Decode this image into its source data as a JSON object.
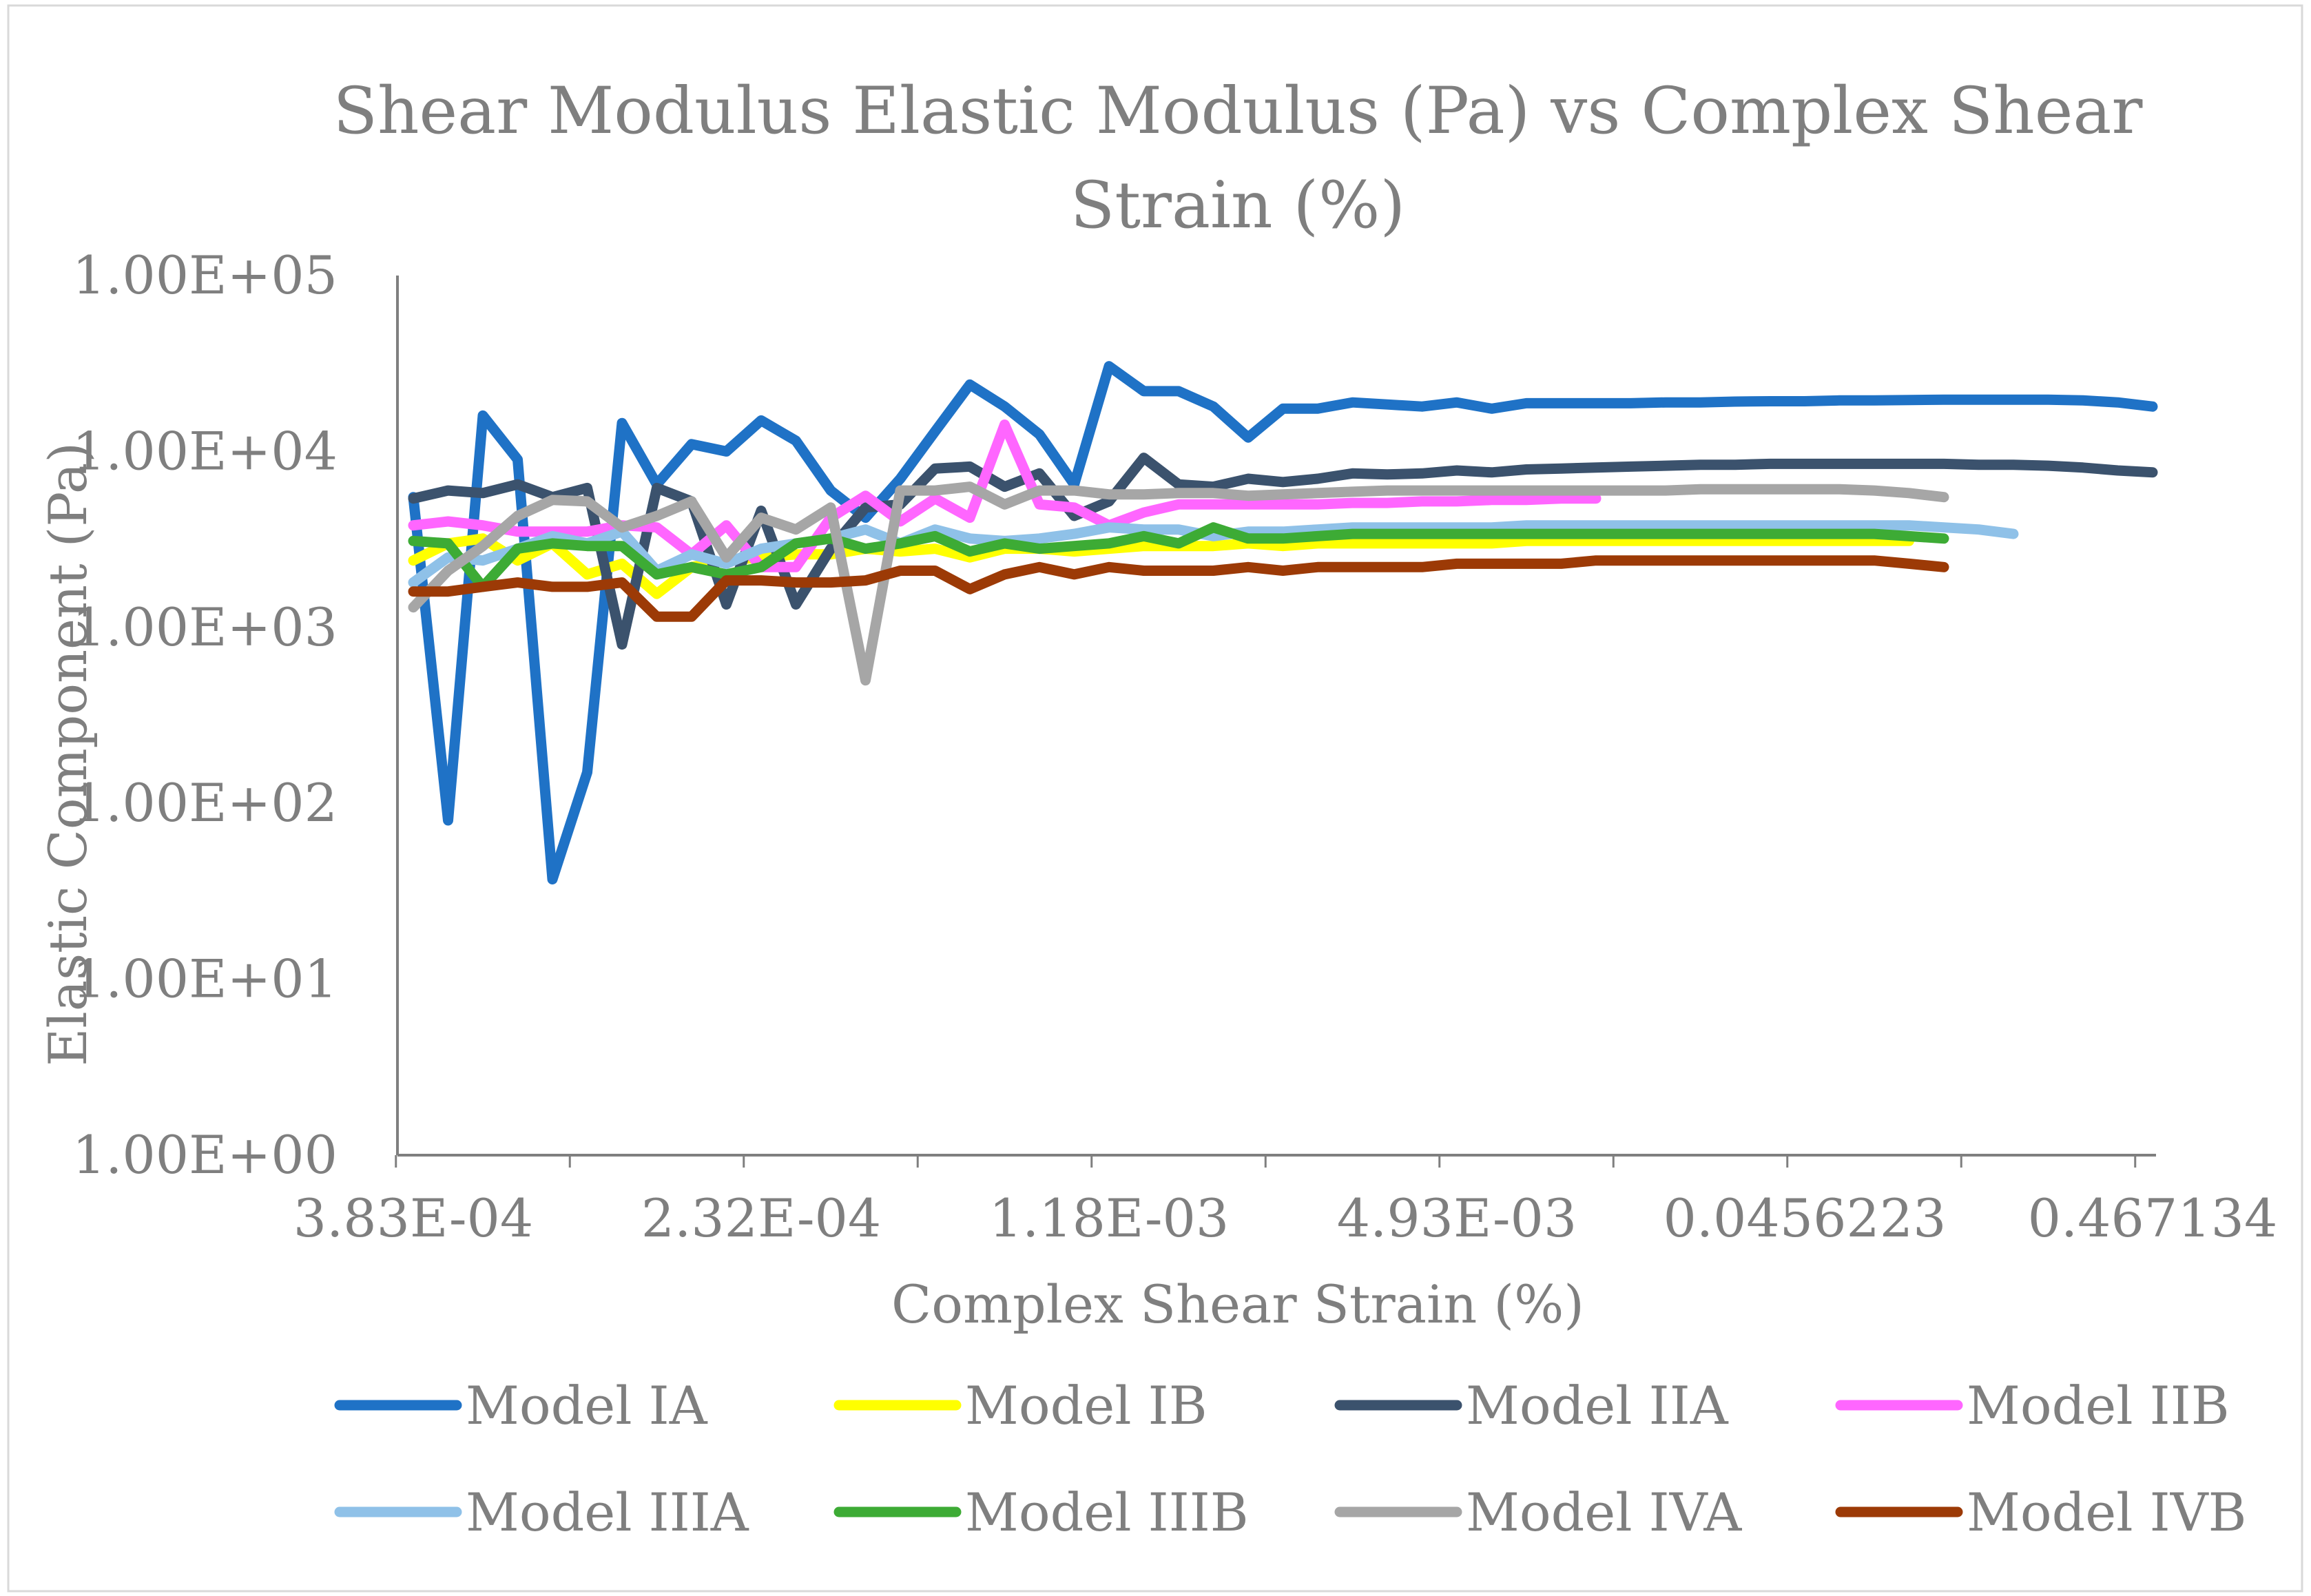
{
  "chart_data": {
    "type": "line",
    "title": "Shear Modulus Elastic Modulus (Pa) vs Complex Shear Strain (%)",
    "title_lines": [
      "Shear Modulus Elastic Modulus (Pa) vs Complex Shear",
      "Strain (%)"
    ],
    "xlabel": "Complex Shear Strain (%)",
    "ylabel": "Elastic Component (Pa)",
    "y_scale": "log",
    "ylim": [
      1,
      100000
    ],
    "y_ticks": [
      {
        "value": 1,
        "label": "1.00E+00"
      },
      {
        "value": 10,
        "label": "1.00E+01"
      },
      {
        "value": 100,
        "label": "1.00E+02"
      },
      {
        "value": 1000,
        "label": "1.00E+03"
      },
      {
        "value": 10000,
        "label": "1.00E+04"
      },
      {
        "value": 100000,
        "label": "1.00E+05"
      }
    ],
    "x_axis": {
      "type": "category",
      "point_count": 51,
      "tick_interval": 5,
      "label_interval": 10,
      "tick_labels": [
        "3.83E-04",
        "2.32E-04",
        "1.18E-03",
        "4.93E-03",
        "0.0456223",
        "0.467134"
      ]
    },
    "legend_position": "bottom",
    "series": [
      {
        "name": "Model IA",
        "color": "#1f72c6",
        "values": [
          5500,
          80,
          16000,
          9000,
          37,
          150,
          14500,
          6500,
          11000,
          10000,
          15000,
          11500,
          6000,
          4200,
          7000,
          13000,
          24000,
          18000,
          12500,
          6500,
          30500,
          22000,
          22000,
          18000,
          12000,
          17500,
          17500,
          19000,
          18500,
          18000,
          19000,
          17500,
          18800,
          18800,
          18800,
          18800,
          19000,
          19000,
          19200,
          19300,
          19300,
          19500,
          19500,
          19600,
          19700,
          19700,
          19700,
          19700,
          19500,
          19000,
          18000
        ]
      },
      {
        "name": "Model IB",
        "color": "#ffff00",
        "values": [
          2400,
          3000,
          3200,
          2400,
          3000,
          2000,
          2300,
          1550,
          2200,
          2400,
          2500,
          2600,
          2600,
          2800,
          2700,
          2800,
          2500,
          2800,
          2800,
          2700,
          2800,
          2900,
          2900,
          2900,
          3000,
          2900,
          3000,
          3000,
          3000,
          3000,
          3000,
          3000,
          3100,
          3100,
          3100,
          3100,
          3100,
          3100,
          3100,
          3100,
          3100,
          3100,
          3100,
          3100
        ]
      },
      {
        "name": "Model IIA",
        "color": "#3b526d",
        "values": [
          5400,
          6000,
          5800,
          6500,
          5500,
          6200,
          800,
          6200,
          5200,
          1350,
          4600,
          1350,
          2800,
          4800,
          5000,
          8000,
          8200,
          6300,
          7500,
          4300,
          5200,
          9200,
          6500,
          6300,
          7000,
          6700,
          7000,
          7500,
          7400,
          7500,
          7800,
          7600,
          7900,
          8000,
          8100,
          8200,
          8300,
          8400,
          8400,
          8500,
          8500,
          8500,
          8500,
          8500,
          8500,
          8400,
          8400,
          8300,
          8100,
          7800,
          7600
        ]
      },
      {
        "name": "Model IIB",
        "color": "#ff66ff",
        "values": [
          3800,
          4000,
          3800,
          3500,
          3500,
          3500,
          3800,
          3700,
          2600,
          3800,
          2200,
          2200,
          4200,
          5600,
          4000,
          5400,
          4200,
          14200,
          5000,
          4800,
          3800,
          4500,
          5000,
          5000,
          5000,
          5000,
          5000,
          5100,
          5100,
          5200,
          5200,
          5300,
          5300,
          5400,
          5400
        ]
      },
      {
        "name": "Model IIIA",
        "color": "#8fc1e8",
        "values": [
          1800,
          2500,
          2400,
          2800,
          3300,
          3000,
          3500,
          2100,
          2600,
          2300,
          2800,
          3000,
          3200,
          3600,
          3000,
          3600,
          3200,
          3100,
          3200,
          3400,
          3700,
          3600,
          3600,
          3300,
          3500,
          3500,
          3600,
          3700,
          3700,
          3700,
          3700,
          3700,
          3800,
          3800,
          3800,
          3800,
          3800,
          3800,
          3800,
          3800,
          3800,
          3800,
          3800,
          3800,
          3700,
          3600,
          3400
        ]
      },
      {
        "name": "Model IIIB",
        "color": "#3dab35",
        "values": [
          3100,
          3000,
          1700,
          2800,
          3000,
          2900,
          2900,
          2000,
          2200,
          2000,
          2200,
          3000,
          3200,
          2800,
          3000,
          3300,
          2700,
          3000,
          2800,
          2900,
          3000,
          3300,
          3000,
          3700,
          3200,
          3200,
          3300,
          3400,
          3400,
          3400,
          3400,
          3400,
          3400,
          3400,
          3400,
          3400,
          3400,
          3400,
          3400,
          3400,
          3400,
          3400,
          3400,
          3300,
          3200
        ]
      },
      {
        "name": "Model IVA",
        "color": "#a6a6a6",
        "values": [
          1300,
          2100,
          2900,
          4300,
          5300,
          5200,
          3700,
          4300,
          5200,
          2500,
          4200,
          3600,
          4800,
          500,
          6000,
          6000,
          6300,
          5000,
          6000,
          6000,
          5700,
          5700,
          5800,
          5800,
          5600,
          5700,
          5800,
          5900,
          6000,
          6000,
          6000,
          6000,
          6000,
          6000,
          6000,
          6000,
          6000,
          6100,
          6100,
          6100,
          6100,
          6100,
          6000,
          5800,
          5500
        ]
      },
      {
        "name": "Model IVB",
        "color": "#9c3a06",
        "values": [
          1600,
          1600,
          1700,
          1800,
          1700,
          1700,
          1800,
          1150,
          1150,
          1850,
          1850,
          1800,
          1800,
          1850,
          2100,
          2100,
          1650,
          2000,
          2200,
          2000,
          2200,
          2100,
          2100,
          2100,
          2200,
          2100,
          2200,
          2200,
          2200,
          2200,
          2300,
          2300,
          2300,
          2300,
          2400,
          2400,
          2400,
          2400,
          2400,
          2400,
          2400,
          2400,
          2400,
          2300,
          2200
        ]
      }
    ]
  }
}
